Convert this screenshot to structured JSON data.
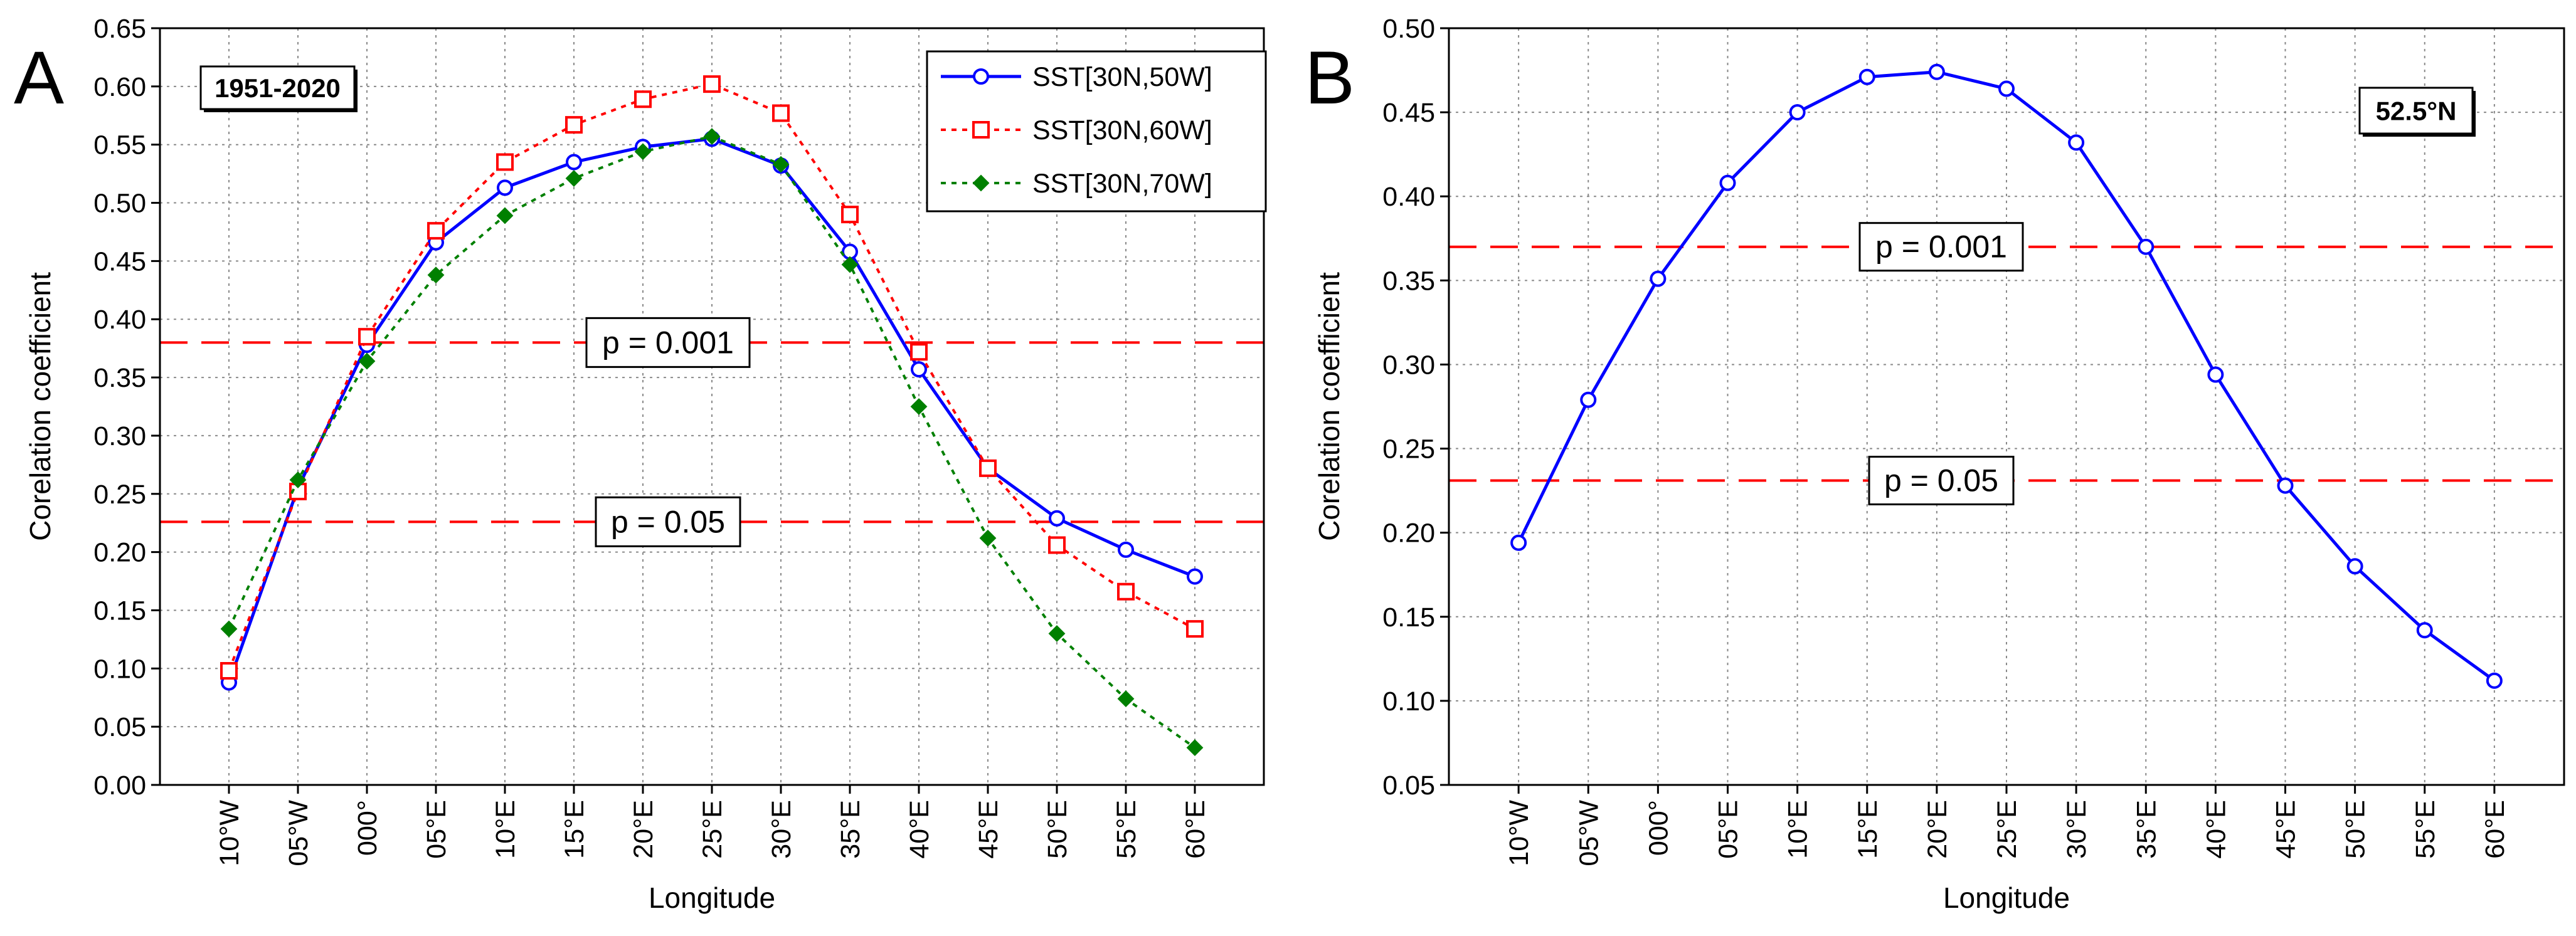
{
  "chart_data": [
    {
      "type": "line",
      "panel_label": "A",
      "period_label": "1951-2020",
      "xlabel": "Longitude",
      "ylabel": "Corelation coefficient",
      "categories": [
        "10°W",
        "05°W",
        "000°",
        "05°E",
        "10°E",
        "15°E",
        "20°E",
        "25°E",
        "30°E",
        "35°E",
        "40°E",
        "45°E",
        "50°E",
        "55°E",
        "60°E"
      ],
      "ylim": [
        0,
        0.65
      ],
      "yticks": [
        "0.00",
        "0.05",
        "0.10",
        "0.15",
        "0.20",
        "0.25",
        "0.30",
        "0.35",
        "0.40",
        "0.45",
        "0.50",
        "0.55",
        "0.60",
        "0.65"
      ],
      "grid": true,
      "legend_position": "top-right",
      "series": [
        {
          "name": "SST[30N,50W]",
          "color": "#0000ff",
          "line": "solid",
          "marker": "circle",
          "values": [
            0.088,
            0.255,
            0.378,
            0.466,
            0.513,
            0.535,
            0.548,
            0.555,
            0.532,
            0.458,
            0.357,
            0.272,
            0.229,
            0.202,
            0.179
          ]
        },
        {
          "name": "SST[30N,60W]",
          "color": "#ff0000",
          "line": "dotted",
          "marker": "square",
          "values": [
            0.098,
            0.252,
            0.385,
            0.476,
            0.535,
            0.567,
            0.589,
            0.602,
            0.577,
            0.49,
            0.372,
            0.272,
            0.206,
            0.166,
            0.134
          ]
        },
        {
          "name": "SST[30N,70W]",
          "color": "#008000",
          "line": "dotted",
          "marker": "diamond",
          "values": [
            0.134,
            0.262,
            0.364,
            0.438,
            0.489,
            0.521,
            0.544,
            0.557,
            0.533,
            0.447,
            0.325,
            0.212,
            0.13,
            0.074,
            0.032
          ]
        }
      ],
      "reference_lines": [
        {
          "label": "p = 0.001",
          "value": 0.38,
          "color": "#ff0000"
        },
        {
          "label": "p = 0.05",
          "value": 0.226,
          "color": "#ff0000"
        }
      ]
    },
    {
      "type": "line",
      "panel_label": "B",
      "period_label": "52.5°N",
      "xlabel": "Longitude",
      "ylabel": "Corelation coefficient",
      "categories": [
        "10°W",
        "05°W",
        "000°",
        "05°E",
        "10°E",
        "15°E",
        "20°E",
        "25°E",
        "30°E",
        "35°E",
        "40°E",
        "45°E",
        "50°E",
        "55°E",
        "60°E"
      ],
      "ylim": [
        0.05,
        0.5
      ],
      "yticks": [
        "0.05",
        "0.10",
        "0.15",
        "0.20",
        "0.25",
        "0.30",
        "0.35",
        "0.40",
        "0.45",
        "0.50"
      ],
      "grid": true,
      "series": [
        {
          "color": "#0000ff",
          "line": "solid",
          "marker": "circle",
          "values": [
            0.194,
            0.279,
            0.351,
            0.408,
            0.45,
            0.471,
            0.474,
            0.464,
            0.432,
            0.37,
            0.294,
            0.228,
            0.18,
            0.142,
            0.112
          ]
        }
      ],
      "reference_lines": [
        {
          "label": "p = 0.001",
          "value": 0.37,
          "color": "#ff0000"
        },
        {
          "label": "p = 0.05",
          "value": 0.231,
          "color": "#ff0000"
        }
      ]
    }
  ]
}
